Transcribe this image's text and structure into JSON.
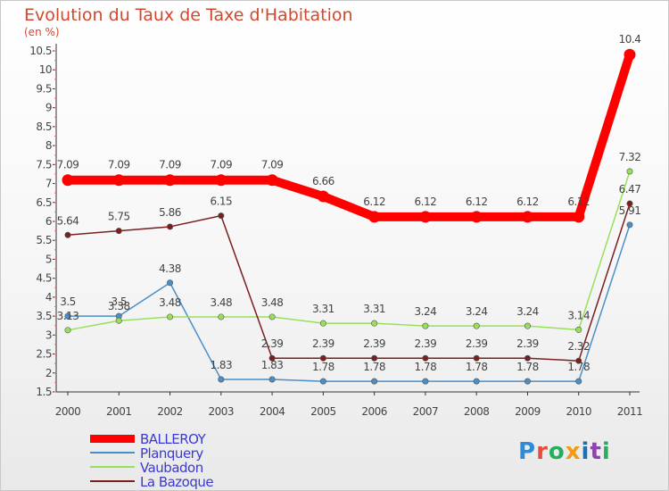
{
  "title": "Evolution du Taux de Taxe d'Habitation",
  "unit_label": "(en %)",
  "brand": {
    "text": "Proxiti",
    "colors": [
      "#2f8bd6",
      "#e74c3c",
      "#27ae60",
      "#f39c12",
      "#1f6fb5",
      "#8e44ad",
      "#27ae60"
    ]
  },
  "chart_data": {
    "type": "line",
    "x": [
      "2000",
      "2001",
      "2002",
      "2003",
      "2004",
      "2005",
      "2006",
      "2007",
      "2008",
      "2009",
      "2010",
      "2011"
    ],
    "ylim": [
      1.5,
      10.5
    ],
    "yticks": [
      "1.5",
      "2",
      "2.5",
      "3",
      "3.5",
      "4",
      "4.5",
      "5",
      "5.5",
      "6",
      "6.5",
      "7",
      "7.5",
      "8",
      "8.5",
      "9",
      "9.5",
      "10",
      "10.5"
    ],
    "grid": false,
    "legend_position": "bottom-left",
    "series": [
      {
        "name": "BALLEROY",
        "color": "#ff0000",
        "values": [
          7.09,
          7.09,
          7.09,
          7.09,
          7.09,
          6.66,
          6.12,
          6.12,
          6.12,
          6.12,
          6.12,
          10.4
        ],
        "labels": [
          "7.09",
          "7.09",
          "7.09",
          "7.09",
          "7.09",
          "6.66",
          "6.12",
          "6.12",
          "6.12",
          "6.12",
          "6.12",
          "10.4"
        ]
      },
      {
        "name": "Planquery",
        "color": "#4a8fc9",
        "values": [
          3.5,
          3.5,
          4.38,
          1.83,
          1.83,
          1.78,
          1.78,
          1.78,
          1.78,
          1.78,
          1.78,
          5.91
        ],
        "labels": [
          "3.5",
          "3.5",
          "4.38",
          "1.83",
          "1.83",
          "1.78",
          "1.78",
          "1.78",
          "1.78",
          "1.78",
          "1.78",
          "5.91"
        ]
      },
      {
        "name": "Vaubadon",
        "color": "#99e05a",
        "values": [
          3.13,
          3.38,
          3.48,
          3.48,
          3.48,
          3.31,
          3.31,
          3.24,
          3.24,
          3.24,
          3.14,
          7.32
        ],
        "labels": [
          "3.13",
          "3.38",
          "3.48",
          "3.48",
          "3.48",
          "3.31",
          "3.31",
          "3.24",
          "3.24",
          "3.24",
          "3.14",
          "7.32"
        ]
      },
      {
        "name": "La Bazoque",
        "color": "#7a1f1f",
        "values": [
          5.64,
          5.75,
          5.86,
          6.15,
          2.39,
          2.39,
          2.39,
          2.39,
          2.39,
          2.39,
          2.32,
          6.47
        ],
        "labels": [
          "5.64",
          "5.75",
          "5.86",
          "6.15",
          "2.39",
          "2.39",
          "2.39",
          "2.39",
          "2.39",
          "2.39",
          "2.32",
          "6.47"
        ]
      }
    ]
  }
}
